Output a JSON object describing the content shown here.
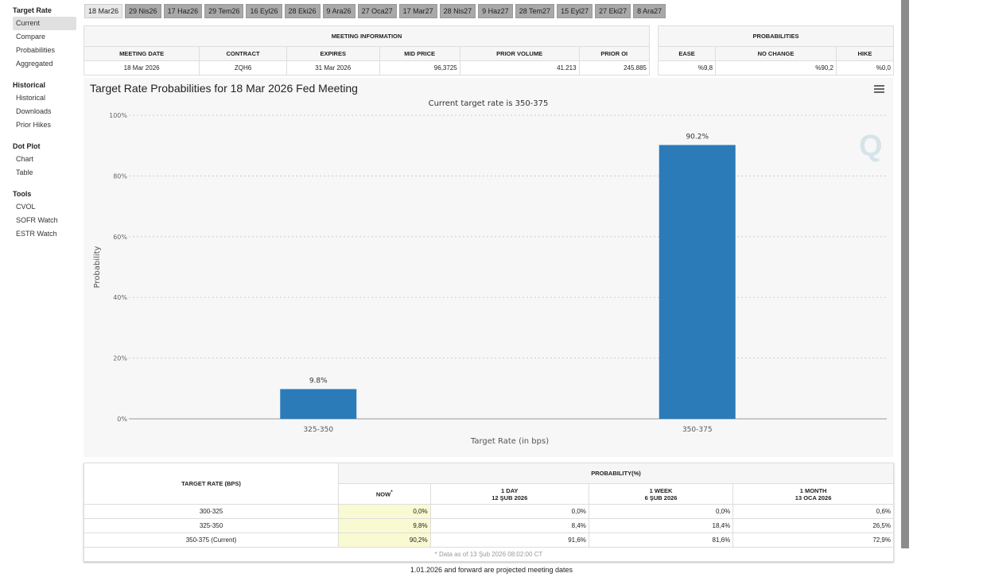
{
  "sidebar": {
    "sections": [
      {
        "title": "Target Rate",
        "items": [
          "Current",
          "Compare",
          "Probabilities",
          "Aggregated"
        ]
      },
      {
        "title": "Historical",
        "items": [
          "Historical",
          "Downloads",
          "Prior Hikes"
        ]
      },
      {
        "title": "Dot Plot",
        "items": [
          "Chart",
          "Table"
        ]
      },
      {
        "title": "Tools",
        "items": [
          "CVOL",
          "SOFR Watch",
          "ESTR Watch"
        ]
      }
    ]
  },
  "tabs": [
    "18 Mar26",
    "29 Nis26",
    "17 Haz26",
    "29 Tem26",
    "16 Eyl26",
    "28 Eki26",
    "9 Ara26",
    "27 Oca27",
    "17 Mar27",
    "28 Nis27",
    "9 Haz27",
    "28 Tem27",
    "15 Eyl27",
    "27 Eki27",
    "8 Ara27"
  ],
  "meeting_info": {
    "title": "MEETING INFORMATION",
    "headers": [
      "MEETING DATE",
      "CONTRACT",
      "EXPIRES",
      "MID PRICE",
      "PRIOR VOLUME",
      "PRIOR OI"
    ],
    "values": [
      "18 Mar 2026",
      "ZQH6",
      "31 Mar 2026",
      "96,3725",
      "41.213",
      "245.885"
    ]
  },
  "probabilities": {
    "title": "PROBABILITIES",
    "headers": [
      "EASE",
      "NO CHANGE",
      "HIKE"
    ],
    "values": [
      "%9,8",
      "%90,2",
      "%0,0"
    ]
  },
  "chart_data": {
    "type": "bar",
    "title": "Target Rate Probabilities for 18 Mar 2026 Fed Meeting",
    "subtitle": "Current target rate is 350-375",
    "xlabel": "Target Rate (in bps)",
    "ylabel": "Probability",
    "categories": [
      "325-350",
      "350-375"
    ],
    "values": [
      9.8,
      90.2
    ],
    "data_labels": [
      "9.8%",
      "90.2%"
    ],
    "ylim": [
      0,
      100
    ],
    "yticks": [
      "0%",
      "20%",
      "40%",
      "60%",
      "80%",
      "100%"
    ],
    "bar_color": "#2b7bb9",
    "grid": true
  },
  "prob_table": {
    "col1": "TARGET RATE (BPS)",
    "group": "PROBABILITY(%)",
    "headers": [
      {
        "l1": "NOW",
        "l2": ""
      },
      {
        "l1": "1 DAY",
        "l2": "12 ŞUB 2026"
      },
      {
        "l1": "1 WEEK",
        "l2": "6 ŞUB 2026"
      },
      {
        "l1": "1 MONTH",
        "l2": "13 OCA 2026"
      }
    ],
    "rows": [
      [
        "300-325",
        "0,0%",
        "0,0%",
        "0,0%",
        "0,6%"
      ],
      [
        "325-350",
        "9,8%",
        "8,4%",
        "18,4%",
        "26,5%"
      ],
      [
        "350-375 (Current)",
        "90,2%",
        "91,6%",
        "81,6%",
        "72,9%"
      ]
    ],
    "note": "* Data as of 13 Şub 2026 08:02:00 CT"
  },
  "footer": "1.01.2026 and forward are projected meeting dates"
}
